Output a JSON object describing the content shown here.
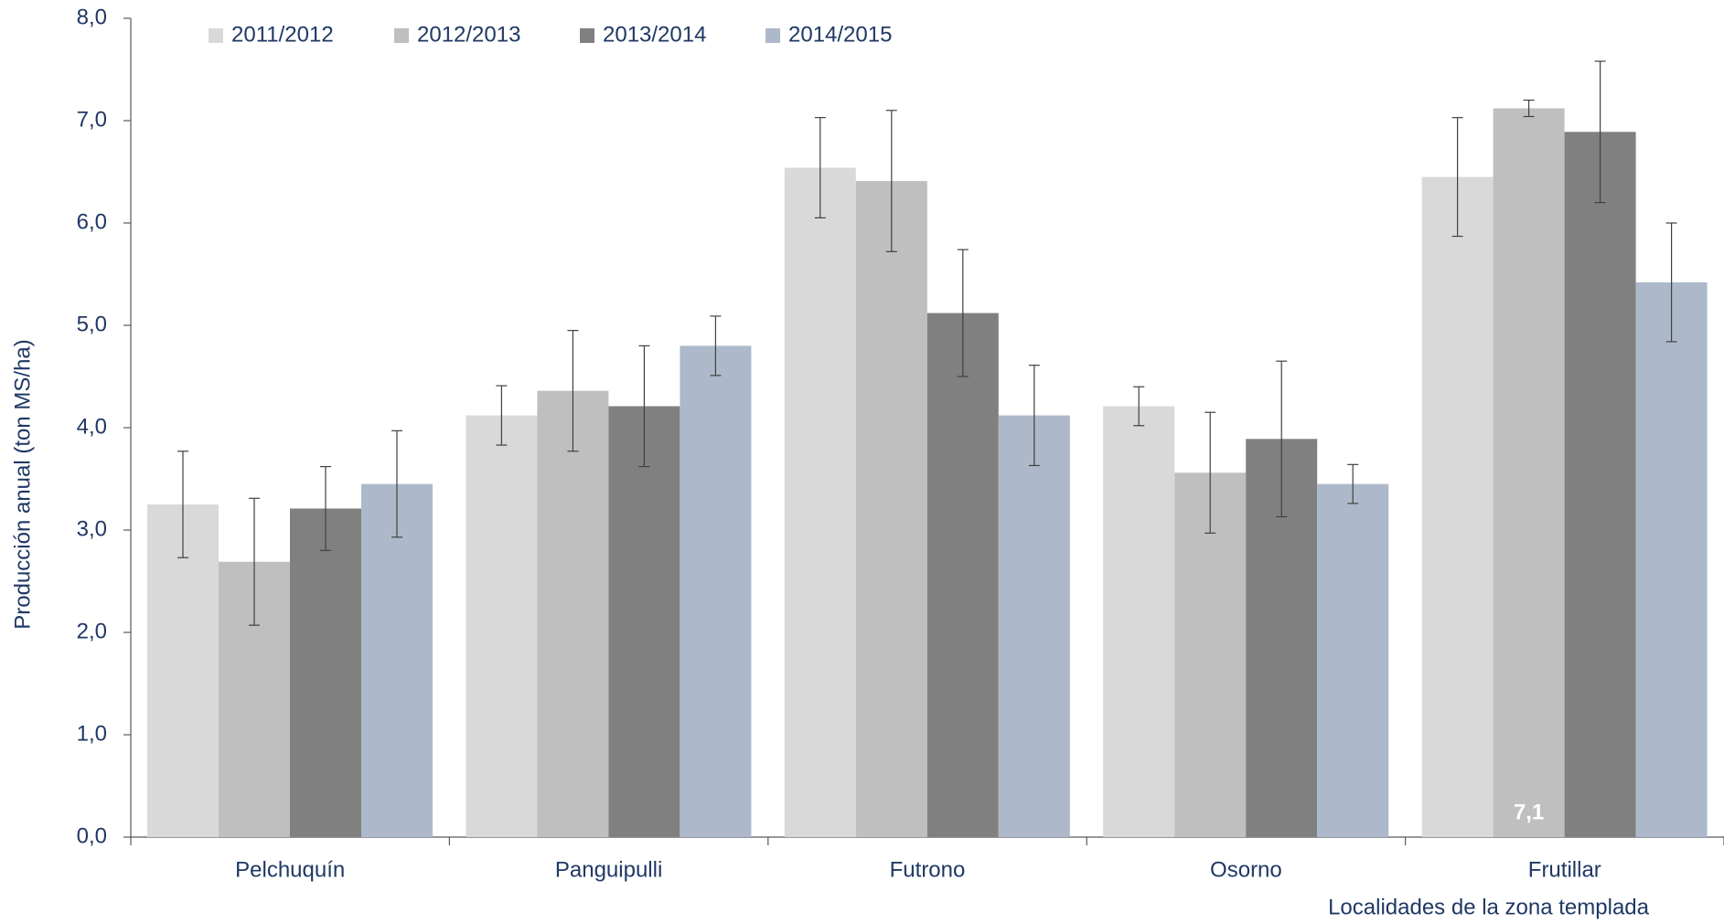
{
  "chart_data": {
    "type": "bar",
    "y_label": "Producción anual (ton MS/ha)",
    "x_label": "Localidades de la zona templada",
    "categories": [
      "Pelchuquín",
      "Panguipulli",
      "Futrono",
      "Osorno",
      "Frutillar"
    ],
    "series": [
      {
        "name": "2011/2012",
        "color": "#d9d9d9",
        "values": [
          3.25,
          4.12,
          6.54,
          4.21,
          6.45
        ],
        "errors": [
          0.52,
          0.29,
          0.49,
          0.19,
          0.58
        ]
      },
      {
        "name": "2012/2013",
        "color": "#bfbfbf",
        "values": [
          2.69,
          4.36,
          6.41,
          3.56,
          7.12
        ],
        "errors": [
          0.62,
          0.59,
          0.69,
          0.59,
          0.08
        ],
        "value_labels": [
          null,
          null,
          null,
          null,
          "7,1"
        ]
      },
      {
        "name": "2013/2014",
        "color": "#808080",
        "values": [
          3.21,
          4.21,
          5.12,
          3.89,
          6.89
        ],
        "errors": [
          0.41,
          0.59,
          0.62,
          0.76,
          0.69
        ]
      },
      {
        "name": "2014/2015",
        "color": "#adb9ca",
        "values": [
          3.45,
          4.8,
          4.12,
          3.45,
          5.42
        ],
        "errors": [
          0.52,
          0.29,
          0.49,
          0.19,
          0.58
        ]
      }
    ],
    "ylim": [
      0,
      8
    ],
    "yticks": [
      {
        "value": 0,
        "label": "0,0"
      },
      {
        "value": 1,
        "label": "1,0"
      },
      {
        "value": 2,
        "label": "2,0"
      },
      {
        "value": 3,
        "label": "3,0"
      },
      {
        "value": 4,
        "label": "4,0"
      },
      {
        "value": 5,
        "label": "5,0"
      },
      {
        "value": 6,
        "label": "6,0"
      },
      {
        "value": 7,
        "label": "7,0"
      },
      {
        "value": 8,
        "label": "8,0"
      }
    ],
    "legend": "top-left"
  }
}
